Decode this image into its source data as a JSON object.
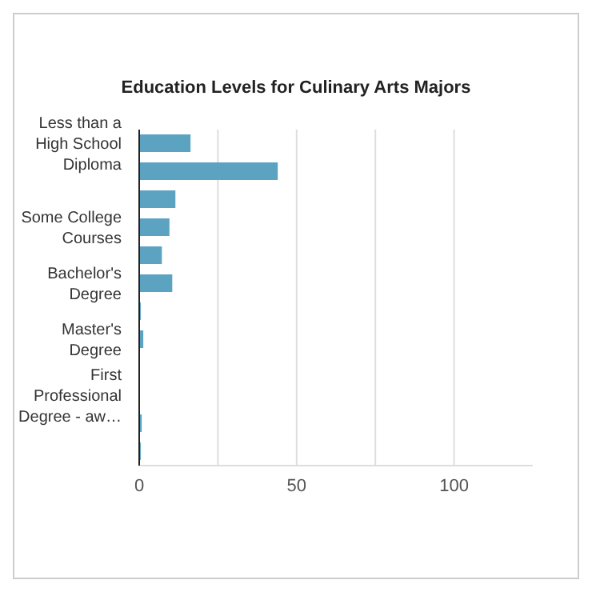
{
  "chart_data": {
    "type": "bar",
    "orientation": "horizontal",
    "title": "Education Levels for Culinary Arts Majors",
    "categories": [
      "Less than a High School Diploma",
      null,
      null,
      "Some College Courses",
      null,
      "Bachelor's Degree",
      null,
      "Master's Degree",
      null,
      "First Professional Degree - aw…",
      null,
      null
    ],
    "values": [
      16.3,
      44,
      11.5,
      9.6,
      7.2,
      10.5,
      0.5,
      1.3,
      null,
      null,
      0.8,
      0.5
    ],
    "color": "#5ba3c0",
    "xlim": [
      0,
      125
    ],
    "xticks": [
      0,
      {
        "value": 25,
        "label": null
      },
      50,
      {
        "value": 75,
        "label": null
      },
      100
    ],
    "grid": "x"
  }
}
